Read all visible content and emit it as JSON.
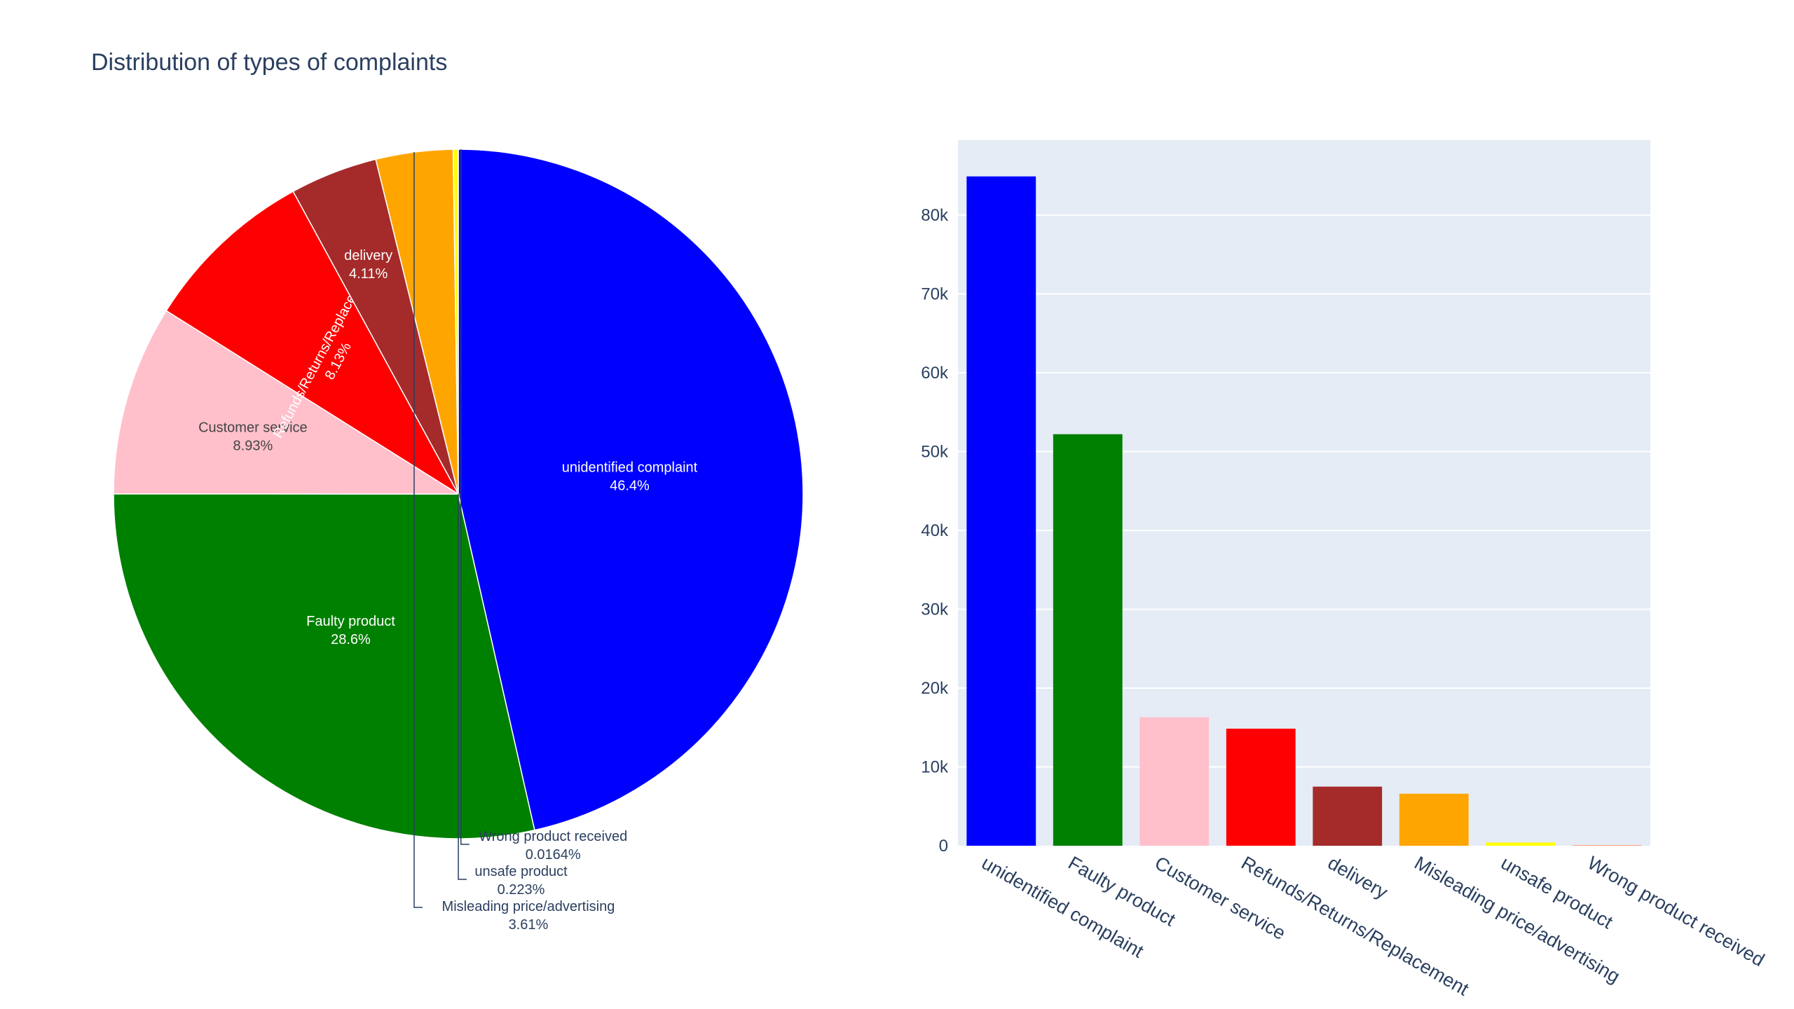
{
  "chart_data": [
    {
      "type": "pie",
      "title": "Distribution of types of complaints",
      "slices": [
        {
          "label": "unidentified complaint",
          "value": 84900,
          "percent": "46.4%",
          "color": "#0000ff",
          "label_color": "#ffffff"
        },
        {
          "label": "Faulty product",
          "value": 52200,
          "percent": "28.6%",
          "color": "#008000",
          "label_color": "#ffffff"
        },
        {
          "label": "Customer service",
          "value": 16300,
          "percent": "8.93%",
          "color": "#ffc0cb",
          "label_color": "#444444"
        },
        {
          "label": "Refunds/Returns/Replacement",
          "value": 14850,
          "percent": "8.13%",
          "color": "#ff0000",
          "label_color": "#ffffff"
        },
        {
          "label": "delivery",
          "value": 7500,
          "percent": "4.11%",
          "color": "#a52a2a",
          "label_color": "#ffffff"
        },
        {
          "label": "Misleading price/advertising",
          "value": 6600,
          "percent": "3.61%",
          "color": "#ffa500",
          "label_color": "#2a3f5f"
        },
        {
          "label": "unsafe product",
          "value": 408,
          "percent": "0.223%",
          "color": "#ffff00",
          "label_color": "#2a3f5f"
        },
        {
          "label": "Wrong product received",
          "value": 30,
          "percent": "0.0164%",
          "color": "#ffa07a",
          "label_color": "#2a3f5f"
        }
      ]
    },
    {
      "type": "bar",
      "categories": [
        "unidentified complaint",
        "Faulty product",
        "Customer service",
        "Refunds/Returns/Replacement",
        "delivery",
        "Misleading price/advertising",
        "unsafe product",
        "Wrong product received"
      ],
      "values": [
        84900,
        52200,
        16300,
        14850,
        7500,
        6600,
        408,
        30
      ],
      "colors": [
        "#0000ff",
        "#008000",
        "#ffc0cb",
        "#ff0000",
        "#a52a2a",
        "#ffa500",
        "#ffff00",
        "#ffa07a"
      ],
      "ylim": [
        0,
        89500
      ],
      "yticks": [
        0,
        10000,
        20000,
        30000,
        40000,
        50000,
        60000,
        70000,
        80000
      ],
      "ytick_labels": [
        "0",
        "10k",
        "20k",
        "30k",
        "40k",
        "50k",
        "60k",
        "70k",
        "80k"
      ],
      "grid": true,
      "plot_bg": "#e5ecf6"
    }
  ]
}
